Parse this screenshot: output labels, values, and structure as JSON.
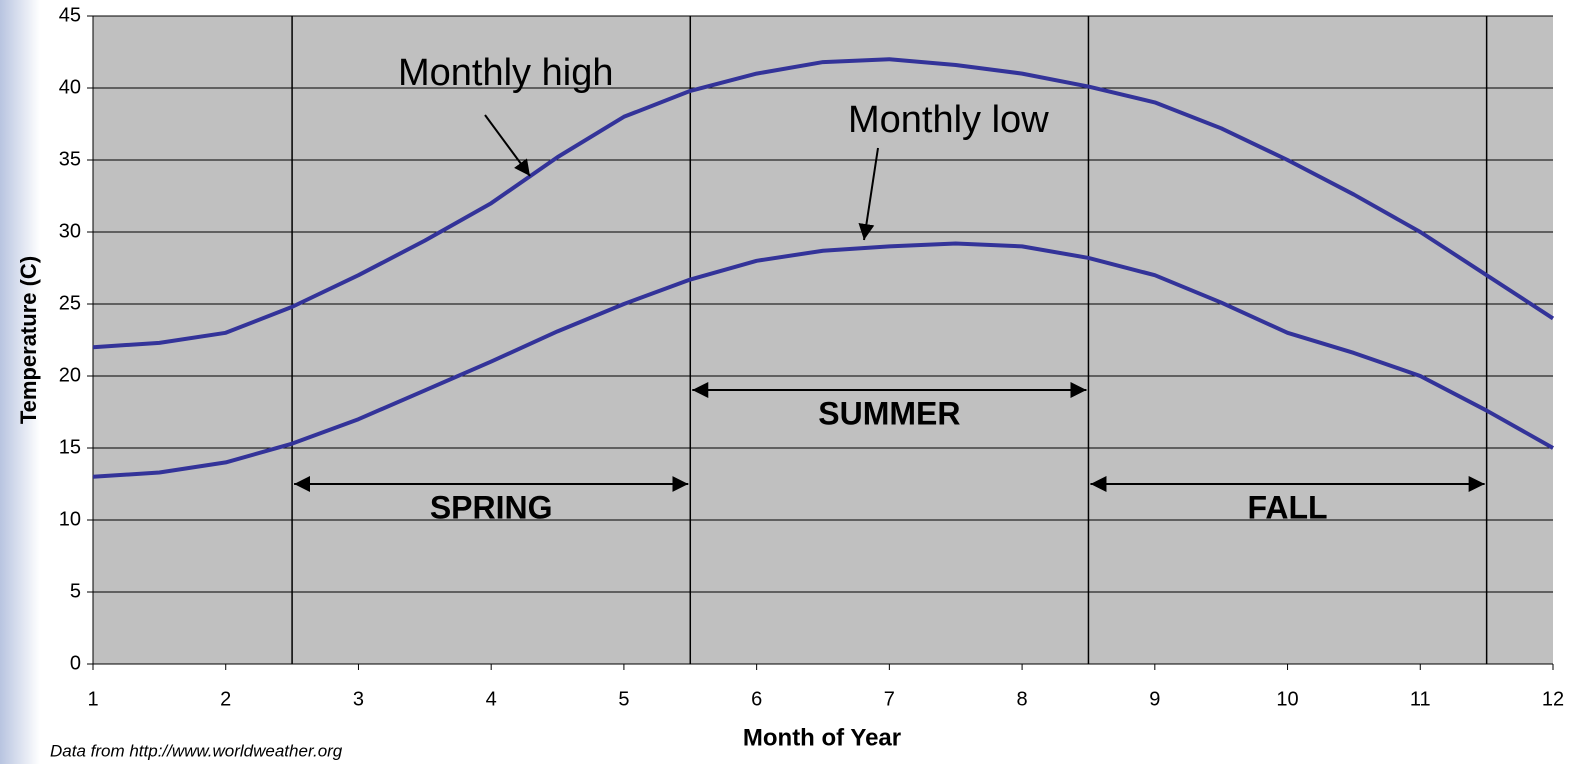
{
  "chart_data": {
    "type": "line",
    "x": [
      1,
      1.5,
      2,
      2.5,
      3,
      3.5,
      4,
      4.5,
      5,
      5.5,
      6,
      6.5,
      7,
      7.5,
      8,
      8.5,
      9,
      9.5,
      10,
      10.5,
      11,
      11.5,
      12
    ],
    "series": [
      {
        "name": "Monthly high",
        "color": "#333399",
        "values": [
          22,
          22.3,
          23,
          24.8,
          27,
          29.4,
          32,
          35.2,
          38,
          39.8,
          41,
          41.8,
          42,
          41.6,
          41,
          40.1,
          39,
          37.2,
          35,
          32.6,
          30,
          27,
          24
        ]
      },
      {
        "name": "Monthly low",
        "color": "#333399",
        "values": [
          13,
          13.3,
          14,
          15.3,
          17,
          19,
          21,
          23.1,
          25,
          26.7,
          28,
          28.7,
          29,
          29.2,
          29,
          28.2,
          27,
          25.1,
          23,
          21.6,
          20,
          17.6,
          15
        ]
      }
    ],
    "xlim": [
      1,
      12
    ],
    "xticks": [
      1,
      2,
      3,
      4,
      5,
      6,
      7,
      8,
      9,
      10,
      11,
      12
    ],
    "ylim": [
      0,
      45
    ],
    "yticks": [
      0,
      5,
      10,
      15,
      20,
      25,
      30,
      35,
      40,
      45
    ],
    "grid": true,
    "x_label": "Month of Year",
    "y_label": "Temperature (C)",
    "dividers": [
      2.5,
      5.5,
      8.5,
      11.5
    ],
    "seasons": [
      "SPRING",
      "SUMMER",
      "FALL"
    ],
    "source": "Data from http://www.worldweather.org"
  }
}
